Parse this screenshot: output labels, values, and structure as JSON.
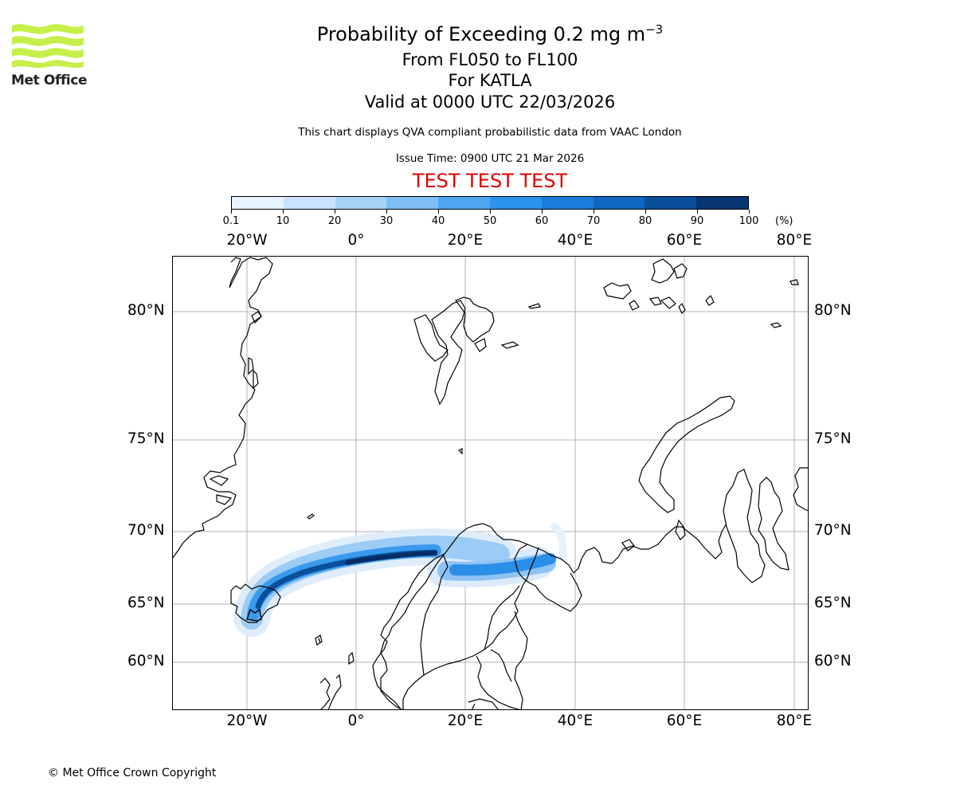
{
  "logo": {
    "text": "Met Office",
    "color": "#c5f04a"
  },
  "header": {
    "title_main": "Probability of Exceeding 0.2 mg m",
    "title_sup": "−3",
    "levels": "From FL050 to FL100",
    "volcano": "For KATLA",
    "valid": "Valid at 0000 UTC 22/03/2026",
    "subtitle": "This chart displays QVA compliant probabilistic data from VAAC London",
    "issue": "Issue Time: 0900 UTC 21 Mar 2026",
    "test": "TEST TEST TEST"
  },
  "colorbar": {
    "ticks": [
      "0.1",
      "10",
      "20",
      "30",
      "40",
      "50",
      "60",
      "70",
      "80",
      "90",
      "100"
    ],
    "unit": "(%)",
    "colors": [
      "#e6f3ff",
      "#c8e3fb",
      "#a8d3f8",
      "#7fbef5",
      "#4fa6f0",
      "#2b93ec",
      "#1a7ddc",
      "#0f67c2",
      "#0a4f9a",
      "#073673"
    ]
  },
  "map": {
    "lon_labels": [
      "20°W",
      "0°",
      "20°E",
      "40°E",
      "60°E",
      "80°E"
    ],
    "lat_labels": [
      "80°N",
      "75°N",
      "70°N",
      "65°N",
      "60°N"
    ],
    "gridline_color": "#b0b0b0",
    "plume_color": "#0f67c2"
  },
  "footer": {
    "copyright": "© Met Office Crown Copyright"
  }
}
